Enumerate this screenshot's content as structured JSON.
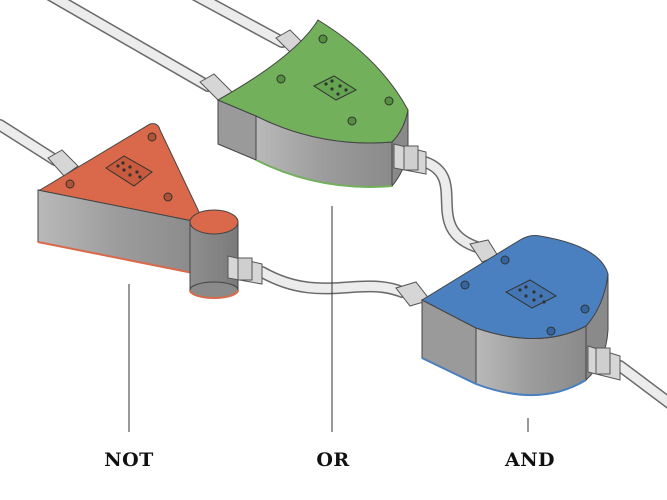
{
  "labels": {
    "not": "NOT",
    "or": "OR",
    "and": "AND"
  },
  "colors": {
    "not_gate": "#d9694a",
    "or_gate": "#72b05c",
    "and_gate": "#4a80c0",
    "gate_body": "#a8a8a8",
    "tube": "#ececec",
    "tube_outline": "#6a6a6a",
    "leader_line": "#333333"
  }
}
